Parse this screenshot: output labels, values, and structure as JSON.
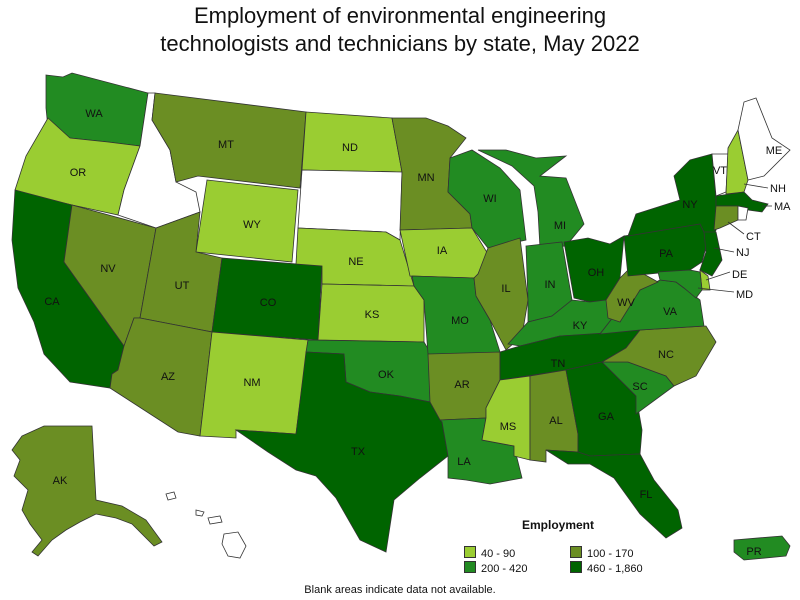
{
  "title_line1": "Employment of environmental engineering",
  "title_line2": "technologists and technicians by state, May 2022",
  "legend": {
    "title": "Employment",
    "items": [
      {
        "label": "40 - 90",
        "color": "#9acd32"
      },
      {
        "label": "100 - 170",
        "color": "#6b8e23"
      },
      {
        "label": "200 - 420",
        "color": "#228b22"
      },
      {
        "label": "460 - 1,860",
        "color": "#006400"
      }
    ]
  },
  "footnote": "Blank areas indicate data not available.",
  "states": {
    "WA": {
      "label": "WA",
      "bin": 2
    },
    "OR": {
      "label": "OR",
      "bin": 0
    },
    "CA": {
      "label": "CA",
      "bin": 3
    },
    "ID": {
      "label": "",
      "bin": -1
    },
    "NV": {
      "label": "NV",
      "bin": 1
    },
    "MT": {
      "label": "MT",
      "bin": 1
    },
    "WY": {
      "label": "WY",
      "bin": 0
    },
    "UT": {
      "label": "UT",
      "bin": 1
    },
    "AZ": {
      "label": "AZ",
      "bin": 1
    },
    "CO": {
      "label": "CO",
      "bin": 3
    },
    "NM": {
      "label": "NM",
      "bin": 0
    },
    "ND": {
      "label": "ND",
      "bin": 0
    },
    "SD": {
      "label": "",
      "bin": -1
    },
    "NE": {
      "label": "NE",
      "bin": 0
    },
    "KS": {
      "label": "KS",
      "bin": 0
    },
    "OK": {
      "label": "OK",
      "bin": 2
    },
    "TX": {
      "label": "TX",
      "bin": 3
    },
    "MN": {
      "label": "MN",
      "bin": 1
    },
    "IA": {
      "label": "IA",
      "bin": 0
    },
    "MO": {
      "label": "MO",
      "bin": 2
    },
    "AR": {
      "label": "AR",
      "bin": 1
    },
    "LA": {
      "label": "LA",
      "bin": 2
    },
    "WI": {
      "label": "WI",
      "bin": 2
    },
    "IL": {
      "label": "IL",
      "bin": 1
    },
    "MI": {
      "label": "MI",
      "bin": 2
    },
    "IN": {
      "label": "IN",
      "bin": 2
    },
    "OH": {
      "label": "OH",
      "bin": 3
    },
    "KY": {
      "label": "KY",
      "bin": 2
    },
    "TN": {
      "label": "TN",
      "bin": 3
    },
    "MS": {
      "label": "MS",
      "bin": 0
    },
    "AL": {
      "label": "AL",
      "bin": 1
    },
    "GA": {
      "label": "GA",
      "bin": 3
    },
    "FL": {
      "label": "FL",
      "bin": 3
    },
    "SC": {
      "label": "SC",
      "bin": 2
    },
    "NC": {
      "label": "NC",
      "bin": 1
    },
    "VA": {
      "label": "VA",
      "bin": 2
    },
    "WV": {
      "label": "WV",
      "bin": 1
    },
    "PA": {
      "label": "PA",
      "bin": 3
    },
    "NY": {
      "label": "NY",
      "bin": 3
    },
    "VT": {
      "label": "VT",
      "bin": -1
    },
    "NH": {
      "label": "NH",
      "bin": 0
    },
    "ME": {
      "label": "ME",
      "bin": -1
    },
    "MA": {
      "label": "MA",
      "bin": 3
    },
    "CT": {
      "label": "CT",
      "bin": 1
    },
    "RI": {
      "label": "",
      "bin": -1
    },
    "NJ": {
      "label": "NJ",
      "bin": 3
    },
    "DE": {
      "label": "DE",
      "bin": 0
    },
    "MD": {
      "label": "MD",
      "bin": 2
    },
    "AK": {
      "label": "AK",
      "bin": 1
    },
    "HI": {
      "label": "",
      "bin": -1
    },
    "PR": {
      "label": "PR",
      "bin": 2
    }
  }
}
